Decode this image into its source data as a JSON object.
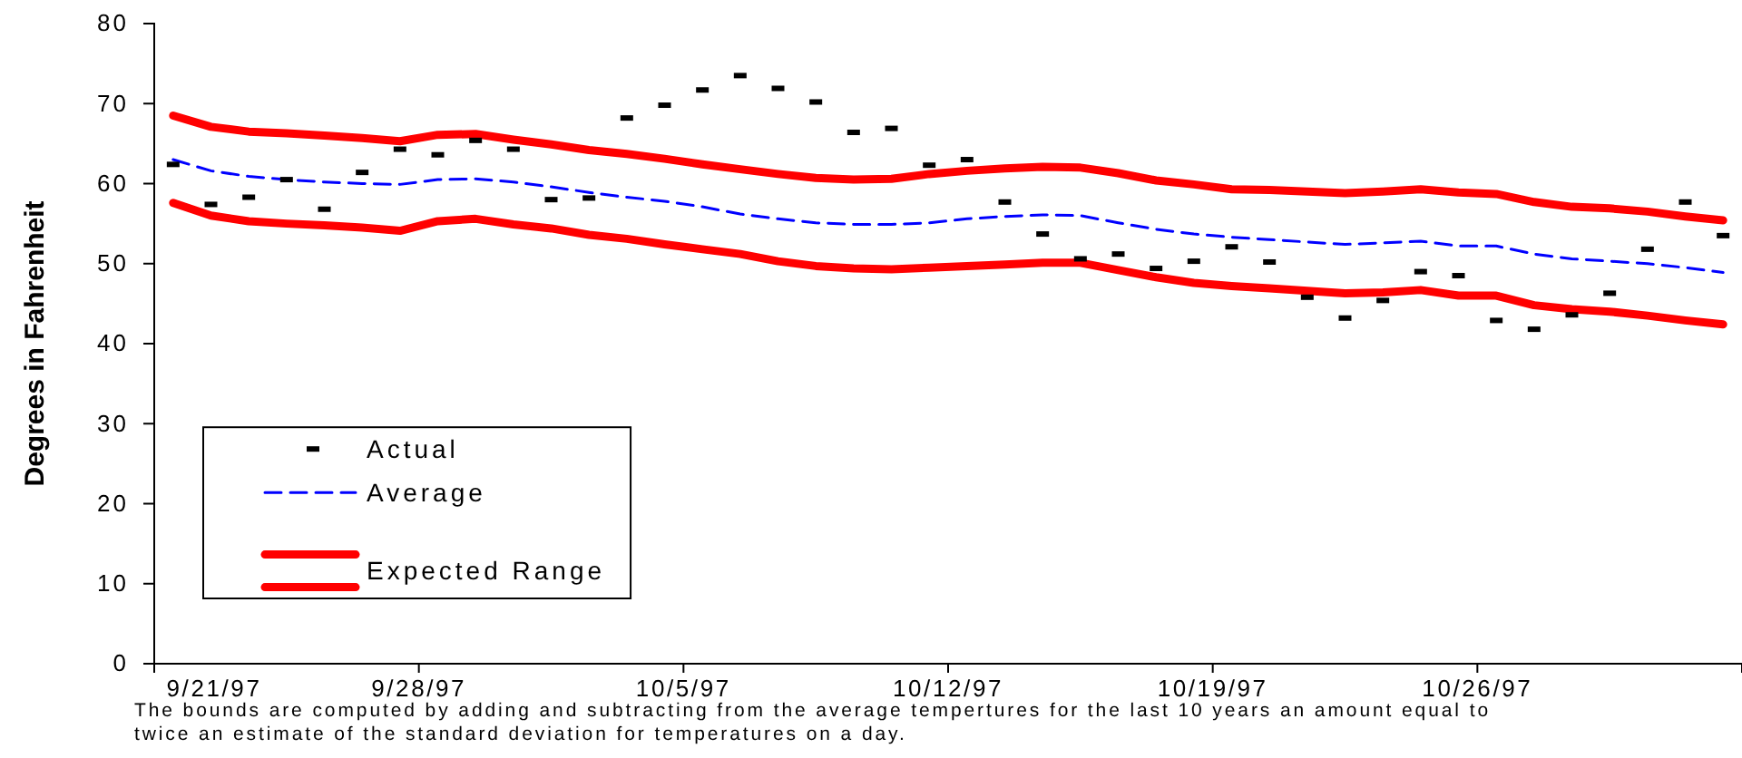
{
  "chart_data": {
    "type": "line",
    "ylabel": "Degrees in Fahrenheit",
    "x": [
      "1997-09-21T12:00",
      "1997-09-22T12:00",
      "1997-09-23T12:00",
      "1997-09-24T12:00",
      "1997-09-25T12:00",
      "1997-09-26T12:00",
      "1997-09-27T12:00",
      "1997-09-28T12:00",
      "1997-09-29T12:00",
      "1997-09-30T12:00",
      "1997-10-01T12:00",
      "1997-10-02T12:00",
      "1997-10-03T12:00",
      "1997-10-04T12:00",
      "1997-10-05T12:00",
      "1997-10-06T12:00",
      "1997-10-07T12:00",
      "1997-10-08T12:00",
      "1997-10-09T12:00",
      "1997-10-10T12:00",
      "1997-10-11T12:00",
      "1997-10-12T12:00",
      "1997-10-13T12:00",
      "1997-10-14T12:00",
      "1997-10-15T12:00",
      "1997-10-16T12:00",
      "1997-10-17T12:00",
      "1997-10-18T12:00",
      "1997-10-19T12:00",
      "1997-10-20T12:00",
      "1997-10-21T12:00",
      "1997-10-22T12:00",
      "1997-10-23T12:00",
      "1997-10-24T12:00",
      "1997-10-25T12:00",
      "1997-10-26T12:00",
      "1997-10-27T12:00",
      "1997-10-28T12:00",
      "1997-10-29T12:00",
      "1997-10-30T12:00",
      "1997-10-31T12:00",
      "1997-11-01T12:00"
    ],
    "series": [
      {
        "name": "Actual",
        "type": "scatter",
        "color": "#000000",
        "values": [
          62.4,
          57.4,
          58.3,
          60.5,
          56.8,
          61.4,
          64.3,
          63.6,
          65.4,
          64.3,
          58.0,
          58.2,
          68.2,
          69.8,
          71.7,
          73.5,
          71.9,
          70.2,
          66.4,
          66.9,
          62.3,
          63.0,
          57.7,
          53.7,
          50.6,
          51.2,
          49.4,
          50.3,
          52.1,
          50.2,
          45.8,
          43.2,
          45.4,
          49.0,
          48.5,
          42.9,
          41.8,
          43.6,
          46.3,
          51.8,
          57.7,
          53.5
        ]
      },
      {
        "name": "Average",
        "line_style": "dashed",
        "color": "#0000ff",
        "values": [
          63.0,
          61.6,
          60.9,
          60.5,
          60.2,
          60.0,
          59.9,
          60.5,
          60.6,
          60.2,
          59.6,
          58.9,
          58.3,
          57.8,
          57.1,
          56.2,
          55.6,
          55.1,
          54.9,
          54.9,
          55.1,
          55.6,
          55.9,
          56.1,
          56.0,
          55.1,
          54.3,
          53.7,
          53.3,
          53.0,
          52.7,
          52.4,
          52.6,
          52.8,
          52.2,
          52.2,
          51.2,
          50.6,
          50.3,
          50.0,
          49.5,
          48.9
        ]
      },
      {
        "name": "Expected Range",
        "line_style": "solid",
        "color": "#ff0000",
        "values": [
          68.5,
          67.1,
          66.5,
          66.3,
          66.0,
          65.7,
          65.3,
          66.1,
          66.2,
          65.5,
          64.9,
          64.2,
          63.7,
          63.1,
          62.4,
          61.8,
          61.2,
          60.7,
          60.5,
          60.6,
          61.2,
          61.6,
          61.9,
          62.1,
          62.0,
          61.3,
          60.4,
          59.9,
          59.3,
          59.2,
          59.0,
          58.8,
          59.0,
          59.3,
          58.9,
          58.7,
          57.7,
          57.1,
          56.9,
          56.5,
          55.9,
          55.4
        ]
      },
      {
        "line_style": "solid",
        "color": "#ff0000",
        "values": [
          57.6,
          56.0,
          55.3,
          55.0,
          54.8,
          54.5,
          54.1,
          55.3,
          55.6,
          54.9,
          54.4,
          53.6,
          53.1,
          52.4,
          51.8,
          51.2,
          50.3,
          49.7,
          49.4,
          49.3,
          49.5,
          49.7,
          49.9,
          50.1,
          50.1,
          49.2,
          48.3,
          47.6,
          47.2,
          46.9,
          46.6,
          46.3,
          46.4,
          46.7,
          46.0,
          46.0,
          44.8,
          44.3,
          44.0,
          43.5,
          42.9,
          42.4
        ]
      }
    ],
    "xlim": [
      "1997-09-21",
      "1997-11-02"
    ],
    "xticks": [
      {
        "value": "1997-09-21",
        "label": "9/21/97"
      },
      {
        "value": "1997-09-28",
        "label": "9/28/97"
      },
      {
        "value": "1997-10-05",
        "label": "10/5/97"
      },
      {
        "value": "1997-10-12",
        "label": "10/12/97"
      },
      {
        "value": "1997-10-19",
        "label": "10/19/97"
      },
      {
        "value": "1997-10-26",
        "label": "10/26/97"
      }
    ],
    "ylim": [
      0,
      80
    ],
    "yticks": [
      0,
      10,
      20,
      30,
      40,
      50,
      60,
      70,
      80
    ],
    "grid": false,
    "legend": "bottom left",
    "annotations": [
      "The bounds are computed by adding and subtracting from the average tempertures for the last 10 years an amount equal to twice an estimate of the standard deviation for temperatures on a day."
    ]
  }
}
